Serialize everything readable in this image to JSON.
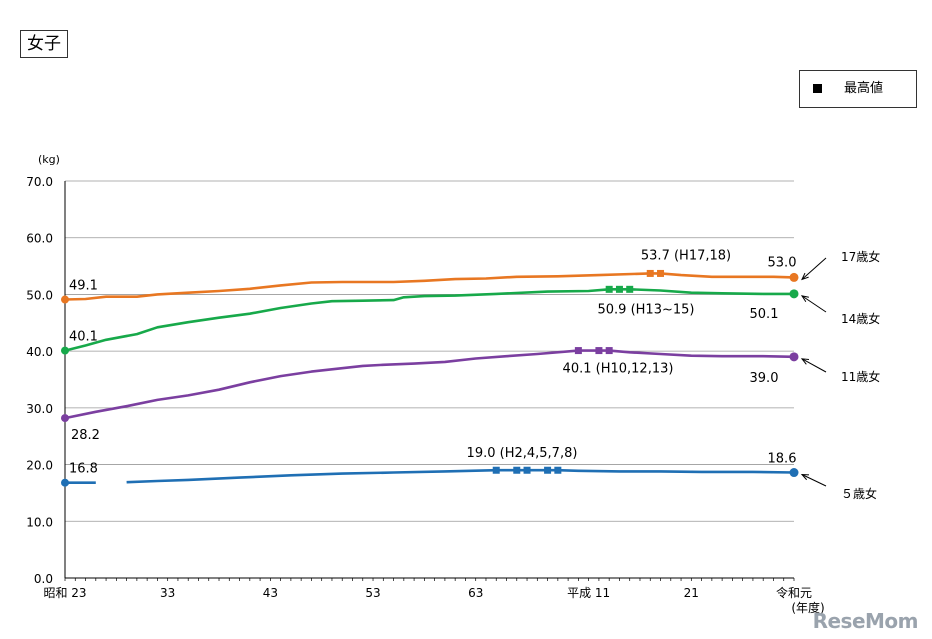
{
  "title": "女子",
  "legend": {
    "label": "最高値"
  },
  "watermark": "ReseMom",
  "chart_data": {
    "type": "line",
    "yunit": "(kg)",
    "xlabel": "(年度)",
    "ylim": [
      0,
      70
    ],
    "xlim": [
      1948,
      2019
    ],
    "yticks": [
      {
        "value": 0,
        "label": "0.0"
      },
      {
        "value": 10,
        "label": "10.0"
      },
      {
        "value": 20,
        "label": "20.0"
      },
      {
        "value": 30,
        "label": "30.0"
      },
      {
        "value": 40,
        "label": "40.0"
      },
      {
        "value": 50,
        "label": "50.0"
      },
      {
        "value": 60,
        "label": "60.0"
      },
      {
        "value": 70,
        "label": "70.0"
      }
    ],
    "xticks": [
      {
        "year": 1948,
        "label": "昭和 23"
      },
      {
        "year": 1958,
        "label": "33"
      },
      {
        "year": 1968,
        "label": "43"
      },
      {
        "year": 1978,
        "label": "53"
      },
      {
        "year": 1988,
        "label": "63"
      },
      {
        "year": 1999,
        "label": "平成 11"
      },
      {
        "year": 2009,
        "label": "21"
      },
      {
        "year": 2019,
        "label": "令和元"
      }
    ],
    "series": [
      {
        "name": "17歳女",
        "color": "#E87722",
        "points": [
          [
            1948,
            49.1
          ],
          [
            1950,
            49.2
          ],
          [
            1952,
            49.6
          ],
          [
            1955,
            49.6
          ],
          [
            1957,
            50.0
          ],
          [
            1960,
            50.3
          ],
          [
            1963,
            50.6
          ],
          [
            1966,
            51.0
          ],
          [
            1969,
            51.6
          ],
          [
            1972,
            52.1
          ],
          [
            1975,
            52.2
          ],
          [
            1978,
            52.2
          ],
          [
            1980,
            52.2
          ],
          [
            1983,
            52.4
          ],
          [
            1986,
            52.7
          ],
          [
            1989,
            52.8
          ],
          [
            1992,
            53.1
          ],
          [
            1996,
            53.2
          ],
          [
            2000,
            53.4
          ],
          [
            2005,
            53.7
          ],
          [
            2006,
            53.7
          ],
          [
            2008,
            53.4
          ],
          [
            2011,
            53.1
          ],
          [
            2014,
            53.1
          ],
          [
            2017,
            53.1
          ],
          [
            2019,
            53.0
          ]
        ],
        "max_years": [
          2005,
          2006
        ],
        "start_label": "49.1",
        "end_label": "53.0",
        "max_label": "53.7 (H17,18)"
      },
      {
        "name": "14歳女",
        "color": "#17A94A",
        "points": [
          [
            1948,
            40.1
          ],
          [
            1950,
            41.0
          ],
          [
            1952,
            42.0
          ],
          [
            1955,
            43.0
          ],
          [
            1957,
            44.2
          ],
          [
            1960,
            45.1
          ],
          [
            1963,
            45.9
          ],
          [
            1966,
            46.6
          ],
          [
            1969,
            47.6
          ],
          [
            1972,
            48.4
          ],
          [
            1974,
            48.8
          ],
          [
            1977,
            48.9
          ],
          [
            1980,
            49.0
          ],
          [
            1981,
            49.5
          ],
          [
            1983,
            49.7
          ],
          [
            1986,
            49.8
          ],
          [
            1990,
            50.1
          ],
          [
            1995,
            50.5
          ],
          [
            1999,
            50.6
          ],
          [
            2001,
            50.9
          ],
          [
            2002,
            50.9
          ],
          [
            2003,
            50.9
          ],
          [
            2006,
            50.7
          ],
          [
            2009,
            50.3
          ],
          [
            2012,
            50.2
          ],
          [
            2016,
            50.1
          ],
          [
            2019,
            50.1
          ]
        ],
        "max_years": [
          2001,
          2002,
          2003
        ],
        "start_label": "40.1",
        "end_label": "50.1",
        "max_label": "50.9 (H13~15)"
      },
      {
        "name": "11歳女",
        "color": "#7B3FA0",
        "points": [
          [
            1948,
            28.2
          ],
          [
            1951,
            29.3
          ],
          [
            1954,
            30.3
          ],
          [
            1957,
            31.4
          ],
          [
            1960,
            32.2
          ],
          [
            1963,
            33.2
          ],
          [
            1966,
            34.5
          ],
          [
            1969,
            35.6
          ],
          [
            1972,
            36.4
          ],
          [
            1975,
            37.0
          ],
          [
            1977,
            37.4
          ],
          [
            1979,
            37.6
          ],
          [
            1982,
            37.8
          ],
          [
            1985,
            38.1
          ],
          [
            1988,
            38.7
          ],
          [
            1991,
            39.1
          ],
          [
            1994,
            39.5
          ],
          [
            1998,
            40.1
          ],
          [
            2000,
            40.1
          ],
          [
            2001,
            40.1
          ],
          [
            2003,
            39.8
          ],
          [
            2006,
            39.5
          ],
          [
            2009,
            39.2
          ],
          [
            2012,
            39.1
          ],
          [
            2016,
            39.1
          ],
          [
            2019,
            39.0
          ]
        ],
        "max_years": [
          1998,
          2000,
          2001
        ],
        "start_label": "28.2",
        "end_label": "39.0",
        "max_label": "40.1 (H10,12,13)"
      },
      {
        "name": "５歳女",
        "color": "#1F6FB4",
        "points": [
          [
            1948,
            16.8
          ],
          [
            1951,
            16.8
          ],
          null,
          [
            1954,
            16.9
          ],
          [
            1957,
            17.1
          ],
          [
            1960,
            17.3
          ],
          [
            1965,
            17.7
          ],
          [
            1970,
            18.1
          ],
          [
            1975,
            18.4
          ],
          [
            1980,
            18.6
          ],
          [
            1985,
            18.8
          ],
          [
            1990,
            19.0
          ],
          [
            1992,
            19.0
          ],
          [
            1993,
            19.0
          ],
          [
            1995,
            19.0
          ],
          [
            1996,
            19.0
          ],
          [
            1998,
            18.9
          ],
          [
            2002,
            18.8
          ],
          [
            2006,
            18.8
          ],
          [
            2010,
            18.7
          ],
          [
            2015,
            18.7
          ],
          [
            2019,
            18.6
          ]
        ],
        "max_years": [
          1990,
          1992,
          1993,
          1995,
          1996
        ],
        "start_label": "16.8",
        "end_label": "18.6",
        "max_label": "19.0 (H2,4,5,7,8)"
      }
    ]
  }
}
